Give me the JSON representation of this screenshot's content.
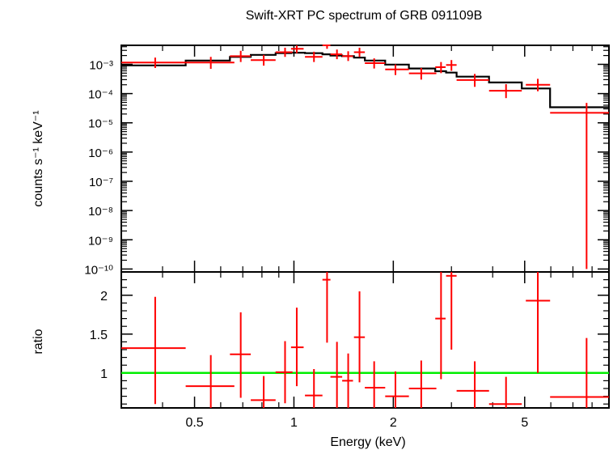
{
  "chart_data": [
    {
      "type": "scatter",
      "panel": "spectrum",
      "title": "Swift-XRT PC spectrum of GRB 091109B",
      "xlabel": "Energy (keV)",
      "ylabel": "counts s⁻¹ keV⁻¹",
      "xscale": "log",
      "yscale": "log",
      "xlim": [
        0.3,
        9.0
      ],
      "ylim_log10": [
        -10.1,
        -2.35
      ],
      "y_ticks": [
        {
          "exp": -3,
          "label": "10⁻³"
        },
        {
          "exp": -4,
          "label": "10⁻⁴"
        },
        {
          "exp": -5,
          "label": "10⁻⁵"
        },
        {
          "exp": -6,
          "label": "10⁻⁶"
        },
        {
          "exp": -7,
          "label": "10⁻⁷"
        },
        {
          "exp": -8,
          "label": "10⁻⁸"
        },
        {
          "exp": -9,
          "label": "10⁻⁹"
        },
        {
          "exp": -10,
          "label": "10⁻¹⁰"
        }
      ],
      "series": [
        {
          "name": "data",
          "color": "#ff0000",
          "points": [
            {
              "x": 0.38,
              "xlo": 0.3,
              "xhi": 0.47,
              "y": 0.00115,
              "ylo": 0.00075,
              "yhi": 0.0017
            },
            {
              "x": 0.56,
              "xlo": 0.47,
              "xhi": 0.66,
              "y": 0.00115,
              "ylo": 0.0007,
              "yhi": 0.0018
            },
            {
              "x": 0.69,
              "xlo": 0.64,
              "xhi": 0.74,
              "y": 0.0019,
              "ylo": 0.0012,
              "yhi": 0.0029
            },
            {
              "x": 0.81,
              "xlo": 0.74,
              "xhi": 0.88,
              "y": 0.0014,
              "ylo": 0.0009,
              "yhi": 0.0021
            },
            {
              "x": 0.94,
              "xlo": 0.88,
              "xhi": 0.99,
              "y": 0.0026,
              "ylo": 0.0018,
              "yhi": 0.0037
            },
            {
              "x": 1.02,
              "xlo": 0.98,
              "xhi": 1.07,
              "y": 0.0034,
              "ylo": 0.0024,
              "yhi": 0.0048
            },
            {
              "x": 1.15,
              "xlo": 1.08,
              "xhi": 1.22,
              "y": 0.0018,
              "ylo": 0.0012,
              "yhi": 0.0027
            },
            {
              "x": 1.26,
              "xlo": 1.22,
              "xhi": 1.29,
              "y": 0.0048,
              "ylo": 0.0034,
              "yhi": 0.0068
            },
            {
              "x": 1.35,
              "xlo": 1.29,
              "xhi": 1.4,
              "y": 0.0022,
              "ylo": 0.0015,
              "yhi": 0.0032
            },
            {
              "x": 1.46,
              "xlo": 1.4,
              "xhi": 1.51,
              "y": 0.0019,
              "ylo": 0.0013,
              "yhi": 0.0028
            },
            {
              "x": 1.58,
              "xlo": 1.52,
              "xhi": 1.64,
              "y": 0.0026,
              "ylo": 0.0018,
              "yhi": 0.0037
            },
            {
              "x": 1.75,
              "xlo": 1.64,
              "xhi": 1.89,
              "y": 0.0011,
              "ylo": 0.00072,
              "yhi": 0.0016
            },
            {
              "x": 2.03,
              "xlo": 1.89,
              "xhi": 2.23,
              "y": 0.00067,
              "ylo": 0.00043,
              "yhi": 0.00099
            },
            {
              "x": 2.43,
              "xlo": 2.23,
              "xhi": 2.7,
              "y": 0.00049,
              "ylo": 0.0003,
              "yhi": 0.00075
            },
            {
              "x": 2.79,
              "xlo": 2.68,
              "xhi": 2.88,
              "y": 0.0008,
              "ylo": 0.0005,
              "yhi": 0.0012
            },
            {
              "x": 3.0,
              "xlo": 2.89,
              "xhi": 3.11,
              "y": 0.00095,
              "ylo": 0.0006,
              "yhi": 0.0014
            },
            {
              "x": 3.53,
              "xlo": 3.11,
              "xhi": 3.9,
              "y": 0.00029,
              "ylo": 0.00017,
              "yhi": 0.00047
            },
            {
              "x": 4.39,
              "xlo": 3.9,
              "xhi": 4.9,
              "y": 0.000125,
              "ylo": 7e-05,
              "yhi": 0.00021
            },
            {
              "x": 5.48,
              "xlo": 5.04,
              "xhi": 5.97,
              "y": 0.0002,
              "ylo": 0.00012,
              "yhi": 0.00032
            },
            {
              "x": 7.7,
              "xlo": 5.97,
              "xhi": 9.0,
              "y": 2.2e-05,
              "ylo": 1e-10,
              "yhi": 4.8e-05
            }
          ]
        },
        {
          "name": "model",
          "color": "#000000",
          "type": "step",
          "edges": [
            0.3,
            0.47,
            0.64,
            0.74,
            0.88,
            0.98,
            1.08,
            1.22,
            1.29,
            1.4,
            1.52,
            1.64,
            1.89,
            2.23,
            2.68,
            2.89,
            3.11,
            3.9,
            4.9,
            5.97,
            9.0
          ],
          "values": [
            0.00092,
            0.00135,
            0.0018,
            0.0021,
            0.0024,
            0.0025,
            0.0024,
            0.0022,
            0.002,
            0.0019,
            0.0017,
            0.00135,
            0.00098,
            0.00072,
            0.00058,
            0.00052,
            0.00038,
            0.00024,
            0.00015,
            3.4e-05
          ]
        }
      ]
    },
    {
      "type": "scatter",
      "panel": "ratio",
      "xlabel": "Energy (keV)",
      "ylabel": "ratio",
      "xscale": "log",
      "yscale": "linear",
      "xlim": [
        0.3,
        9.0
      ],
      "ylim": [
        0.55,
        2.3
      ],
      "x_ticks": [
        {
          "value": 0.5,
          "label": "0.5"
        },
        {
          "value": 1,
          "label": "1"
        },
        {
          "value": 2,
          "label": "2"
        },
        {
          "value": 5,
          "label": "5"
        }
      ],
      "y_ticks": [
        {
          "value": 1,
          "label": "1"
        },
        {
          "value": 1.5,
          "label": "1.5"
        },
        {
          "value": 2,
          "label": "2"
        }
      ],
      "reference_line": {
        "y": 1,
        "color": "#00ee00"
      },
      "series": [
        {
          "name": "ratio",
          "color": "#ff0000",
          "points": [
            {
              "x": 0.38,
              "xlo": 0.3,
              "xhi": 0.47,
              "y": 1.32,
              "ylo": 0.6,
              "yhi": 1.98
            },
            {
              "x": 0.56,
              "xlo": 0.47,
              "xhi": 0.66,
              "y": 0.83,
              "ylo": 0.45,
              "yhi": 1.23
            },
            {
              "x": 0.69,
              "xlo": 0.64,
              "xhi": 0.74,
              "y": 1.24,
              "ylo": 0.68,
              "yhi": 1.78
            },
            {
              "x": 0.81,
              "xlo": 0.74,
              "xhi": 0.88,
              "y": 0.65,
              "ylo": 0.35,
              "yhi": 0.96
            },
            {
              "x": 0.94,
              "xlo": 0.88,
              "xhi": 0.99,
              "y": 1.01,
              "ylo": 0.61,
              "yhi": 1.41
            },
            {
              "x": 1.02,
              "xlo": 0.98,
              "xhi": 1.07,
              "y": 1.33,
              "ylo": 0.83,
              "yhi": 1.84
            },
            {
              "x": 1.15,
              "xlo": 1.08,
              "xhi": 1.22,
              "y": 0.71,
              "ylo": 0.4,
              "yhi": 1.05
            },
            {
              "x": 1.26,
              "xlo": 1.22,
              "xhi": 1.29,
              "y": 2.2,
              "ylo": 1.39,
              "yhi": 3.0
            },
            {
              "x": 1.35,
              "xlo": 1.29,
              "xhi": 1.4,
              "y": 0.95,
              "ylo": 0.55,
              "yhi": 1.4
            },
            {
              "x": 1.46,
              "xlo": 1.4,
              "xhi": 1.51,
              "y": 0.9,
              "ylo": 0.52,
              "yhi": 1.25
            },
            {
              "x": 1.58,
              "xlo": 1.52,
              "xhi": 1.64,
              "y": 1.46,
              "ylo": 0.88,
              "yhi": 2.05
            },
            {
              "x": 1.75,
              "xlo": 1.64,
              "xhi": 1.89,
              "y": 0.81,
              "ylo": 0.48,
              "yhi": 1.15
            },
            {
              "x": 2.03,
              "xlo": 1.89,
              "xhi": 2.23,
              "y": 0.7,
              "ylo": 0.42,
              "yhi": 1.02
            },
            {
              "x": 2.43,
              "xlo": 2.23,
              "xhi": 2.7,
              "y": 0.8,
              "ylo": 0.45,
              "yhi": 1.16
            },
            {
              "x": 2.79,
              "xlo": 2.68,
              "xhi": 2.88,
              "y": 1.7,
              "ylo": 0.92,
              "yhi": 2.5
            },
            {
              "x": 3.0,
              "xlo": 2.89,
              "xhi": 3.11,
              "y": 2.25,
              "ylo": 1.3,
              "yhi": 3.2
            },
            {
              "x": 3.53,
              "xlo": 3.11,
              "xhi": 3.9,
              "y": 0.77,
              "ylo": 0.42,
              "yhi": 1.15
            },
            {
              "x": 4.39,
              "xlo": 3.9,
              "xhi": 4.9,
              "y": 0.6,
              "ylo": 0.3,
              "yhi": 0.95
            },
            {
              "x": 5.48,
              "xlo": 5.04,
              "xhi": 5.97,
              "y": 1.93,
              "ylo": 1.0,
              "yhi": 2.9
            },
            {
              "x": 7.7,
              "xlo": 5.97,
              "xhi": 9.0,
              "y": 0.69,
              "ylo": 0.0,
              "yhi": 1.45
            }
          ]
        }
      ]
    }
  ]
}
